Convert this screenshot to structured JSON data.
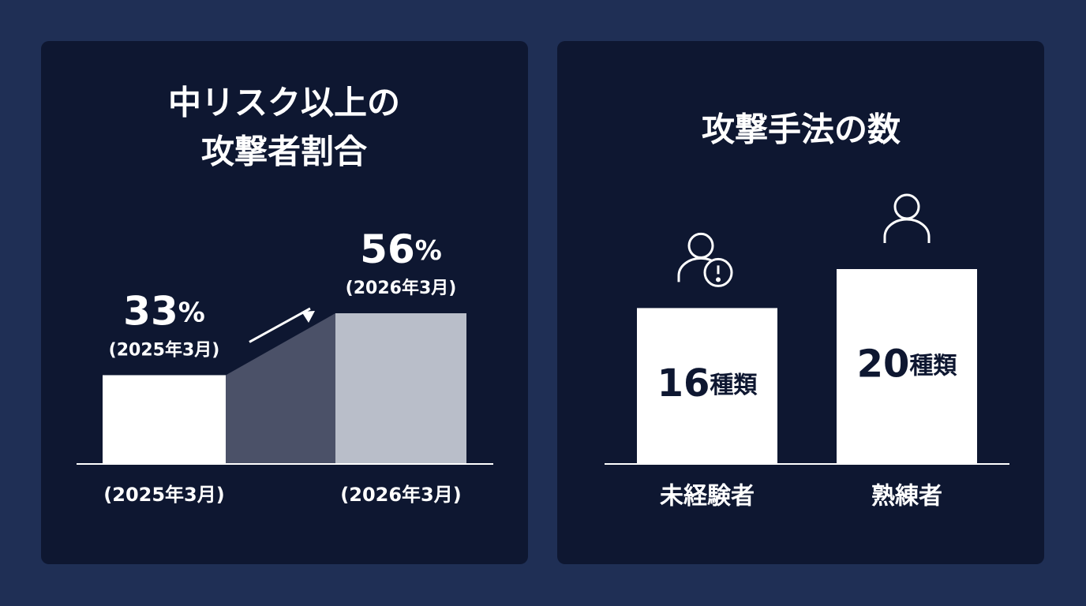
{
  "chart_data": [
    {
      "type": "bar",
      "title": [
        "中リスク以上の",
        "攻撃者割合"
      ],
      "categories": [
        "(2025年3月)",
        "(2026年3月)"
      ],
      "values": [
        33,
        56
      ],
      "value_labels": [
        "33%",
        "56%"
      ],
      "colors": [
        "#ffffff",
        "#b9bec9"
      ]
    },
    {
      "type": "bar",
      "title": [
        "攻撃手法の数"
      ],
      "categories": [
        "未経験者",
        "熟練者"
      ],
      "values": [
        16,
        20
      ],
      "value_labels": [
        "16種類",
        "20種類"
      ],
      "color": "#ffffff"
    }
  ]
}
